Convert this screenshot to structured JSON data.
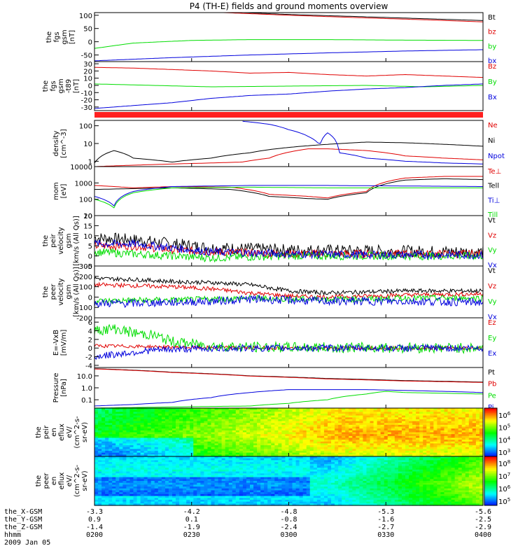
{
  "title": "P4 (TH-E) fields and ground moments overview",
  "colors": {
    "black": "#000000",
    "red": "#e00000",
    "green": "#00dd00",
    "blue": "#0000dd",
    "status_bar": "#ff2020"
  },
  "time_footer": {
    "row_labels": [
      "the_X-GSM",
      "the_Y-GSM",
      "the_Z-GSM",
      "hhmm",
      "2009 Jan 05"
    ],
    "ticks": [
      {
        "time": "0200",
        "x_gsm": "-3.3",
        "y_gsm": "0.9",
        "z_gsm": "-1.4"
      },
      {
        "time": "0230",
        "x_gsm": "-4.2",
        "y_gsm": "0.1",
        "z_gsm": "-1.9"
      },
      {
        "time": "0300",
        "x_gsm": "-4.8",
        "y_gsm": "-0.8",
        "z_gsm": "-2.4"
      },
      {
        "time": "0330",
        "x_gsm": "-5.3",
        "y_gsm": "-1.6",
        "z_gsm": "-2.7"
      },
      {
        "time": "0400",
        "x_gsm": "-5.6",
        "y_gsm": "-2.5",
        "z_gsm": "-2.9"
      }
    ]
  },
  "chart_data": [
    {
      "type": "line",
      "ylabel": [
        "the",
        "fgs",
        "gsm",
        "[nT]"
      ],
      "yticks": [
        "100",
        "50",
        "0",
        "-50"
      ],
      "ylim": [
        -75,
        110
      ],
      "legend": [
        {
          "name": "Bt",
          "color": "#000000"
        },
        {
          "name": "bz",
          "color": "#e00000"
        },
        {
          "name": "by",
          "color": "#00dd00"
        },
        {
          "name": "bx",
          "color": "#0000dd"
        }
      ],
      "series": [
        {
          "name": "Bt",
          "x": [
            0,
            0.15,
            0.3,
            0.5,
            0.7,
            0.85,
            1.0
          ],
          "y": [
            140,
            125,
            115,
            103,
            94,
            87,
            80
          ]
        },
        {
          "name": "bz",
          "x": [
            0,
            0.15,
            0.3,
            0.5,
            0.7,
            0.85,
            1.0
          ],
          "y": [
            138,
            123,
            112,
            100,
            90,
            83,
            75
          ]
        },
        {
          "name": "by",
          "x": [
            0,
            0.1,
            0.25,
            0.4,
            0.6,
            0.8,
            1.0
          ],
          "y": [
            -25,
            -5,
            5,
            8,
            8,
            6,
            5
          ]
        },
        {
          "name": "bx",
          "x": [
            0,
            0.2,
            0.4,
            0.6,
            0.8,
            1.0
          ],
          "y": [
            -72,
            -60,
            -50,
            -42,
            -35,
            -30
          ]
        }
      ]
    },
    {
      "type": "line",
      "ylabel": [
        "the",
        "fgs",
        "gsm",
        "-t89",
        "[nT]"
      ],
      "yticks": [
        "30",
        "20",
        "10",
        "0",
        "-10",
        "-20",
        "-30"
      ],
      "ylim": [
        -35,
        33
      ],
      "legend": [
        {
          "name": "Bz",
          "color": "#e00000"
        },
        {
          "name": "By",
          "color": "#00dd00"
        },
        {
          "name": "Bx",
          "color": "#0000dd"
        }
      ],
      "series": [
        {
          "name": "Bz",
          "x": [
            0,
            0.1,
            0.2,
            0.3,
            0.4,
            0.5,
            0.6,
            0.7,
            0.8,
            0.9,
            1.0
          ],
          "y": [
            25,
            24,
            22,
            20,
            17,
            18,
            15,
            13,
            15,
            13,
            11
          ]
        },
        {
          "name": "By",
          "x": [
            0,
            0.15,
            0.3,
            0.5,
            0.7,
            0.85,
            1.0
          ],
          "y": [
            2,
            0,
            -2,
            -1,
            0,
            -2,
            0
          ]
        },
        {
          "name": "Bx",
          "x": [
            0,
            0.1,
            0.2,
            0.3,
            0.4,
            0.5,
            0.6,
            0.7,
            0.8,
            0.9,
            1.0
          ],
          "y": [
            -32,
            -28,
            -24,
            -18,
            -14,
            -12,
            -8,
            -5,
            -3,
            0,
            2
          ]
        }
      ]
    },
    {
      "type": "line",
      "ylabel": [
        "density",
        "[cm^-3]"
      ],
      "yticks": [
        "100",
        "10",
        "1"
      ],
      "yscale": "log",
      "ylim": [
        0.5,
        200
      ],
      "legend": [
        {
          "name": "Ne",
          "color": "#e00000"
        },
        {
          "name": "Ni",
          "color": "#000000"
        },
        {
          "name": "Npot",
          "color": "#0000dd"
        }
      ],
      "series": [
        {
          "name": "Ni",
          "x": [
            0,
            0.05,
            0.1,
            0.2,
            0.3,
            0.4,
            0.5,
            0.6,
            0.7,
            0.8,
            0.9,
            1.0
          ],
          "y": [
            0.8,
            4,
            1.5,
            0.9,
            1.5,
            3,
            6,
            9,
            12,
            11,
            9,
            7
          ]
        },
        {
          "name": "Ne",
          "x": [
            0,
            0.1,
            0.2,
            0.3,
            0.38,
            0.45,
            0.55,
            0.6,
            0.7,
            0.8,
            0.9,
            1.0
          ],
          "y": [
            0.5,
            0.6,
            0.7,
            0.8,
            0.9,
            1.5,
            5,
            5,
            4,
            2,
            1.5,
            1.2
          ]
        },
        {
          "name": "Npot",
          "x": [
            0.38,
            0.45,
            0.5,
            0.55,
            0.58,
            0.6,
            0.63,
            0.7,
            0.8,
            0.9,
            1.0
          ],
          "y": [
            180,
            120,
            60,
            25,
            8,
            40,
            3,
            1.5,
            1,
            0.8,
            0.7
          ]
        }
      ]
    },
    {
      "type": "line",
      "ylabel": [
        "mom",
        "[eV]"
      ],
      "yticks": [
        "10000",
        "1000",
        "100",
        "10"
      ],
      "yscale": "log",
      "ylim": [
        10,
        10000
      ],
      "legend": [
        {
          "name": "Te⊥",
          "color": "#e00000"
        },
        {
          "name": "Tell",
          "color": "#000000"
        },
        {
          "name": "Ti⊥",
          "color": "#0000dd"
        },
        {
          "name": "Till",
          "color": "#00dd00"
        }
      ],
      "series": [
        {
          "name": "Te⊥",
          "x": [
            0,
            0.1,
            0.2,
            0.35,
            0.45,
            0.55,
            0.6,
            0.7,
            0.8,
            0.9,
            1.0
          ],
          "y": [
            700,
            500,
            600,
            550,
            200,
            150,
            120,
            300,
            2000,
            2500,
            2500
          ]
        },
        {
          "name": "Tell",
          "x": [
            0,
            0.1,
            0.2,
            0.35,
            0.45,
            0.55,
            0.6,
            0.7,
            0.8,
            0.9,
            1.0
          ],
          "y": [
            400,
            450,
            500,
            400,
            150,
            110,
            100,
            250,
            1500,
            1800,
            1600
          ]
        },
        {
          "name": "Ti⊥",
          "x": [
            0,
            0.05,
            0.1,
            0.2,
            0.4,
            0.6,
            0.8,
            1.0
          ],
          "y": [
            150,
            40,
            300,
            600,
            700,
            700,
            650,
            600
          ]
        },
        {
          "name": "Till",
          "x": [
            0,
            0.05,
            0.1,
            0.2,
            0.4,
            0.6,
            0.8,
            1.0
          ],
          "y": [
            100,
            30,
            250,
            500,
            550,
            500,
            500,
            500
          ]
        }
      ]
    },
    {
      "type": "line",
      "ylabel": [
        "the",
        "peir",
        "velocity",
        "gsm",
        "[km/s (All Qs)]"
      ],
      "yticks": [
        "20",
        "15",
        "10",
        "5",
        "0",
        "-5"
      ],
      "ylim": [
        -5,
        20
      ],
      "legend": [
        {
          "name": "Vt",
          "color": "#000000"
        },
        {
          "name": "Vz",
          "color": "#e00000"
        },
        {
          "name": "Vy",
          "color": "#00dd00"
        },
        {
          "name": "Vx",
          "color": "#0000dd"
        }
      ],
      "series": [
        {
          "name": "Vt",
          "x": [
            0,
            0.1,
            0.2,
            0.3,
            0.5,
            0.7,
            1.0
          ],
          "y": [
            9,
            8,
            6,
            4,
            3,
            2.5,
            2
          ],
          "noise": 3
        },
        {
          "name": "Vz",
          "x": [
            0,
            0.1,
            0.2,
            0.3,
            0.5,
            0.7,
            1.0
          ],
          "y": [
            5,
            5,
            3,
            2,
            1,
            1,
            1
          ],
          "noise": 2
        },
        {
          "name": "Vy",
          "x": [
            0,
            0.1,
            0.2,
            0.3,
            0.5,
            0.7,
            1.0
          ],
          "y": [
            2,
            1,
            0,
            -1,
            0,
            0,
            0
          ],
          "noise": 2
        },
        {
          "name": "Vx",
          "x": [
            0,
            0.1,
            0.2,
            0.3,
            0.5,
            0.7,
            1.0
          ],
          "y": [
            6,
            6,
            4,
            2,
            1,
            0.5,
            0.5
          ],
          "noise": 2
        }
      ]
    },
    {
      "type": "line",
      "ylabel": [
        "the",
        "peer",
        "velocity",
        "gsm",
        "[km/s (All Qs)]"
      ],
      "yticks": [
        "300",
        "200",
        "100",
        "0",
        "-100",
        "-200"
      ],
      "ylim": [
        -200,
        300
      ],
      "legend": [
        {
          "name": "Vt",
          "color": "#000000"
        },
        {
          "name": "Vz",
          "color": "#e00000"
        },
        {
          "name": "Vy",
          "color": "#00dd00"
        },
        {
          "name": "Vx",
          "color": "#0000dd"
        }
      ],
      "series": [
        {
          "name": "Vt",
          "x": [
            0,
            0.1,
            0.2,
            0.3,
            0.4,
            0.5,
            0.6,
            0.7,
            0.8,
            1.0
          ],
          "y": [
            180,
            170,
            150,
            140,
            120,
            60,
            40,
            50,
            60,
            60
          ],
          "noise": 20
        },
        {
          "name": "Vz",
          "x": [
            0,
            0.1,
            0.2,
            0.3,
            0.4,
            0.5,
            0.6,
            0.7,
            0.8,
            1.0
          ],
          "y": [
            120,
            110,
            100,
            80,
            40,
            10,
            0,
            10,
            20,
            30
          ],
          "noise": 20
        },
        {
          "name": "Vy",
          "x": [
            0,
            0.1,
            0.2,
            0.3,
            0.4,
            0.5,
            0.6,
            0.7,
            0.8,
            1.0
          ],
          "y": [
            -40,
            -30,
            -30,
            -20,
            -10,
            -20,
            -20,
            -20,
            -10,
            -10
          ],
          "noise": 30
        },
        {
          "name": "Vx",
          "x": [
            0,
            0.1,
            0.2,
            0.3,
            0.4,
            0.5,
            0.6,
            0.7,
            0.8,
            1.0
          ],
          "y": [
            -60,
            -60,
            -50,
            -40,
            -20,
            -30,
            -40,
            -40,
            -40,
            -50
          ],
          "noise": 40
        }
      ]
    },
    {
      "type": "line",
      "ylabel": [
        "E=-VxB",
        "[mV/m]"
      ],
      "yticks": [
        "6",
        "4",
        "2",
        "0",
        "-2",
        "-4"
      ],
      "ylim": [
        -4.5,
        7
      ],
      "legend": [
        {
          "name": "Ez",
          "color": "#e00000"
        },
        {
          "name": "Ey",
          "color": "#00dd00"
        },
        {
          "name": "Ex",
          "color": "#0000dd"
        }
      ],
      "series": [
        {
          "name": "Ez",
          "x": [
            0,
            0.1,
            0.2,
            0.3,
            0.5,
            1.0
          ],
          "y": [
            0.5,
            0.4,
            0.2,
            0.1,
            0,
            0
          ],
          "noise": 0.4
        },
        {
          "name": "Ey",
          "x": [
            0,
            0.05,
            0.1,
            0.15,
            0.2,
            0.25,
            0.3,
            0.4,
            1.0
          ],
          "y": [
            4,
            4.5,
            3.5,
            3,
            1.5,
            1,
            0.5,
            0.2,
            0
          ],
          "noise": 1.2
        },
        {
          "name": "Ex",
          "x": [
            0,
            0.05,
            0.1,
            0.15,
            0.2,
            0.3,
            0.5,
            1.0
          ],
          "y": [
            -2,
            -1.5,
            -1,
            -0.5,
            -0.3,
            -0.1,
            0,
            0
          ],
          "noise": 0.8
        }
      ]
    },
    {
      "type": "line",
      "ylabel": [
        "Pressure",
        "[nPa]"
      ],
      "yticks": [
        "10.0",
        "1.0",
        "0.1"
      ],
      "yscale": "log",
      "ylim": [
        0.02,
        50
      ],
      "legend": [
        {
          "name": "Pt",
          "color": "#000000"
        },
        {
          "name": "Pb",
          "color": "#e00000"
        },
        {
          "name": "Pe",
          "color": "#00dd00"
        },
        {
          "name": "Pi",
          "color": "#0000dd"
        }
      ],
      "series": [
        {
          "name": "Pt",
          "x": [
            0,
            0.2,
            0.4,
            0.6,
            0.8,
            1.0
          ],
          "y": [
            40,
            20,
            10,
            6,
            4,
            3
          ]
        },
        {
          "name": "Pb",
          "x": [
            0,
            0.2,
            0.4,
            0.6,
            0.8,
            1.0
          ],
          "y": [
            38,
            19,
            9.5,
            5.5,
            3.7,
            2.8
          ]
        },
        {
          "name": "Pi",
          "x": [
            0,
            0.1,
            0.2,
            0.3,
            0.4,
            0.5,
            0.6,
            0.7,
            0.8,
            0.9,
            1.0
          ],
          "y": [
            0.03,
            0.04,
            0.06,
            0.15,
            0.4,
            0.7,
            0.7,
            0.7,
            0.6,
            0.5,
            0.4
          ]
        },
        {
          "name": "Pe",
          "x": [
            0,
            0.2,
            0.4,
            0.5,
            0.6,
            0.7,
            0.75,
            0.8,
            0.9,
            1.0
          ],
          "y": [
            0.02,
            0.025,
            0.03,
            0.05,
            0.1,
            0.3,
            0.5,
            0.4,
            0.35,
            0.3
          ]
        }
      ]
    },
    {
      "type": "heatmap",
      "ylabel": [
        "the",
        "peir",
        "en",
        "eflux",
        "eV/",
        "(cm^2-s-",
        "sr-eV)"
      ],
      "yticks": [
        "10000",
        "1000",
        "100",
        "10"
      ],
      "yscale": "log",
      "colorbar": {
        "ticks": [
          "10^6",
          "10^5",
          "10^4",
          "10^3"
        ]
      }
    },
    {
      "type": "heatmap",
      "ylabel": [
        "the",
        "peer",
        "en",
        "eflux",
        "eV/",
        "(cm^2-s-",
        "sr-eV)"
      ],
      "yticks": [
        "10000",
        "1000",
        "100",
        "10"
      ],
      "yscale": "log",
      "colorbar": {
        "ticks": [
          "10^8",
          "10^7",
          "10^6",
          "10^5"
        ]
      }
    }
  ]
}
